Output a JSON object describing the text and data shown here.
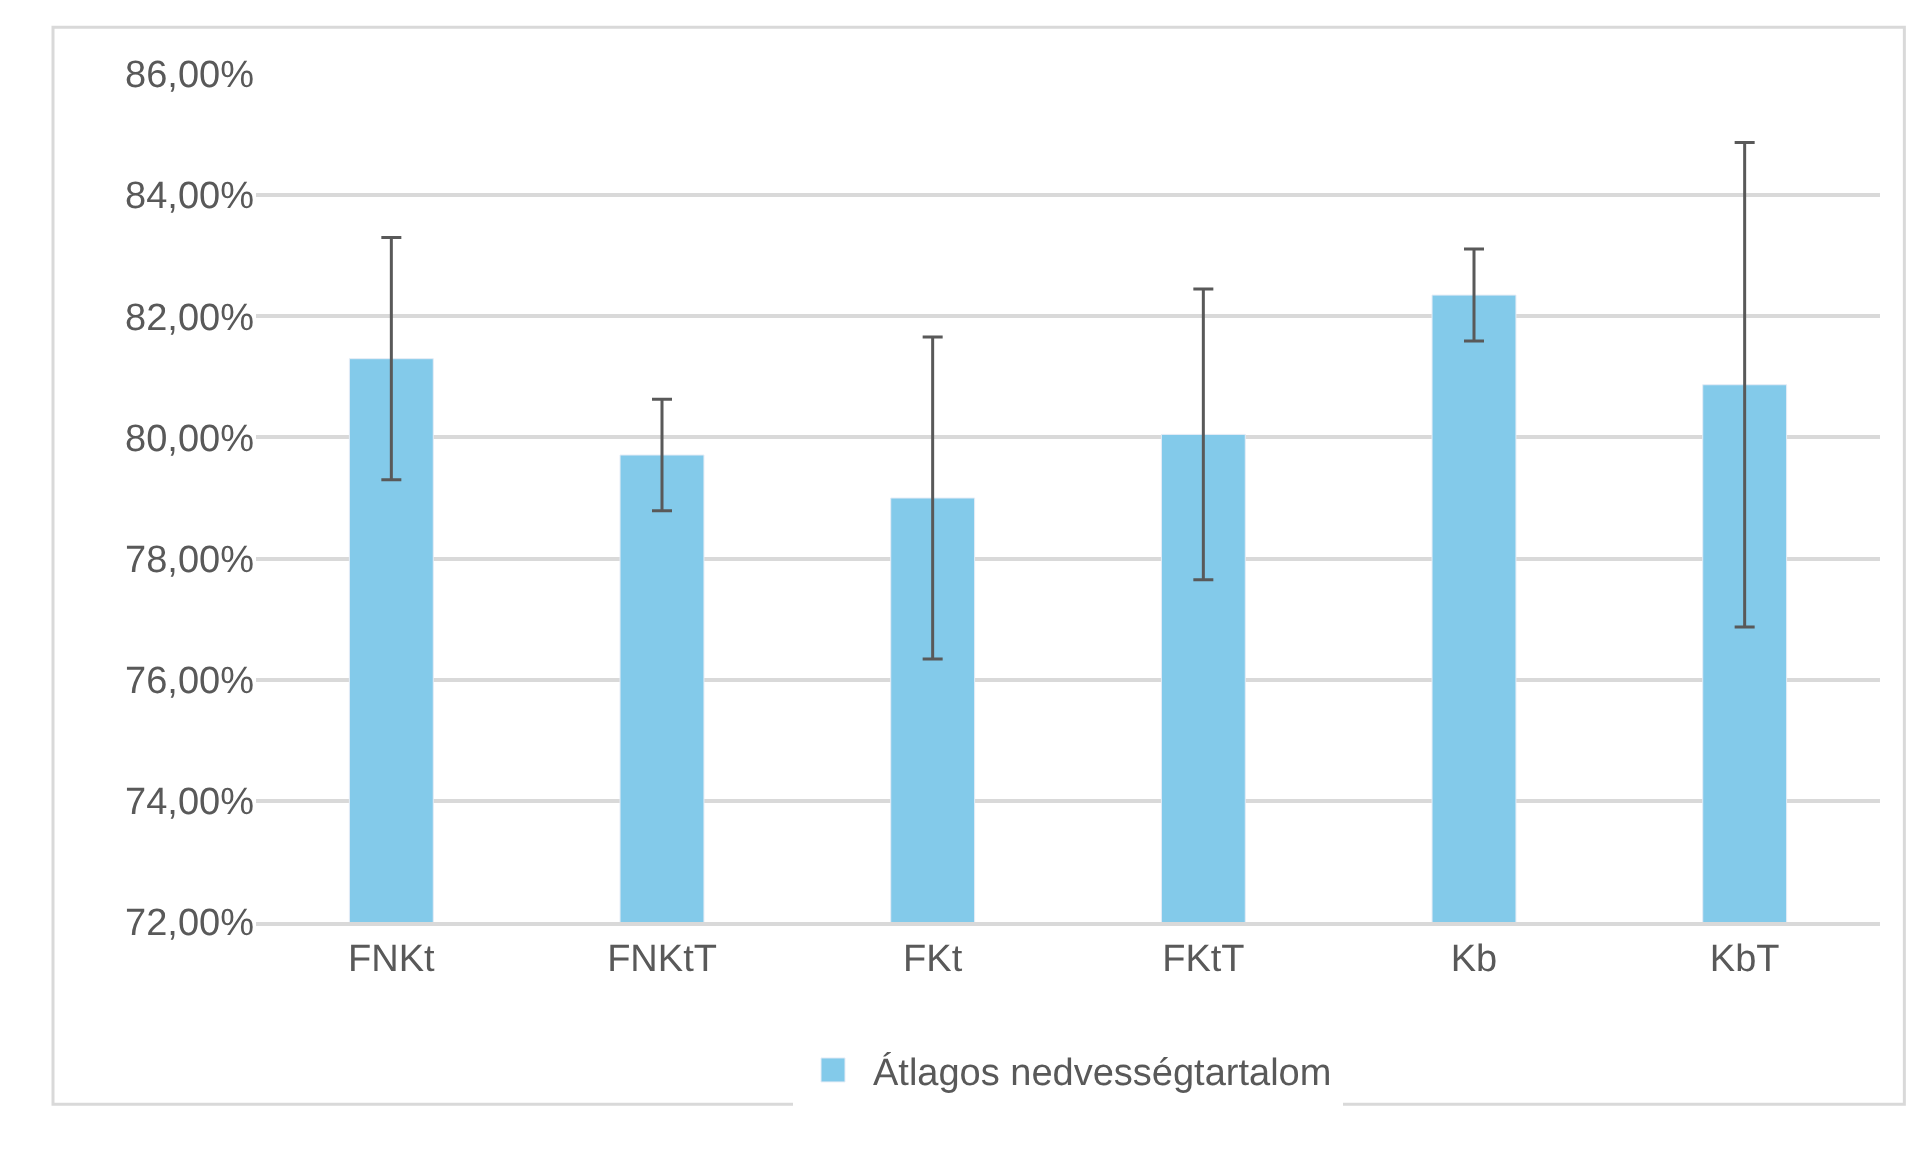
{
  "chart_data": {
    "type": "bar",
    "categories": [
      "FNKt",
      "FNKtT",
      "FKt",
      "FKtT",
      "Kb",
      "KbT"
    ],
    "series": [
      {
        "name": "Átlagos nedvességtartalom",
        "color": "#83caea",
        "values": [
          81.3,
          79.71,
          79.0,
          80.05,
          82.35,
          80.87
        ],
        "errors": [
          2.0,
          0.92,
          2.66,
          2.4,
          0.76,
          4.0
        ]
      }
    ],
    "ylim": [
      72,
      86
    ],
    "yticks": [
      {
        "value": 72,
        "label": "72,00%"
      },
      {
        "value": 74,
        "label": "74,00%"
      },
      {
        "value": 76,
        "label": "76,00%"
      },
      {
        "value": 78,
        "label": "78,00%"
      },
      {
        "value": 80,
        "label": "80,00%"
      },
      {
        "value": 82,
        "label": "82,00%"
      },
      {
        "value": 84,
        "label": "84,00%"
      },
      {
        "value": 86,
        "label": "86,00%"
      }
    ],
    "grid": "y",
    "legend": "bottom"
  }
}
